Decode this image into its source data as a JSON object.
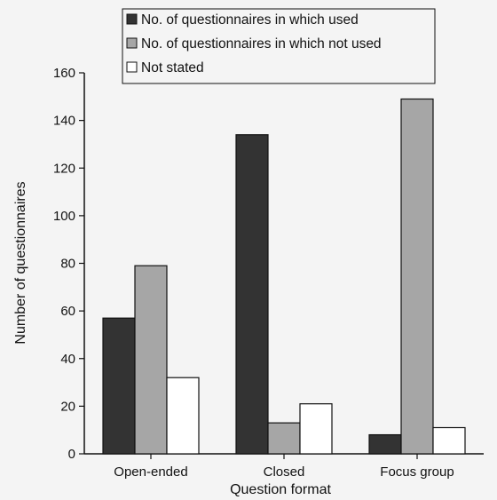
{
  "chart_data": {
    "type": "bar",
    "categories": [
      "Open-ended",
      "Closed",
      "Focus group"
    ],
    "series": [
      {
        "name": "No. of questionnaires in which used",
        "values": [
          57,
          134,
          8
        ],
        "color": "#333333"
      },
      {
        "name": "No. of questionnaires in which not used",
        "values": [
          79,
          13,
          149
        ],
        "color": "#a6a6a6"
      },
      {
        "name": "Not stated",
        "values": [
          32,
          21,
          11
        ],
        "color": "#ffffff"
      }
    ],
    "xlabel": "Question format",
    "ylabel": "Number of questionnaires",
    "ylim": [
      0,
      160
    ],
    "yticks": [
      "0",
      "20",
      "40",
      "60",
      "80",
      "100",
      "120",
      "140",
      "160"
    ],
    "grid": false,
    "legend_position": "top-center"
  }
}
